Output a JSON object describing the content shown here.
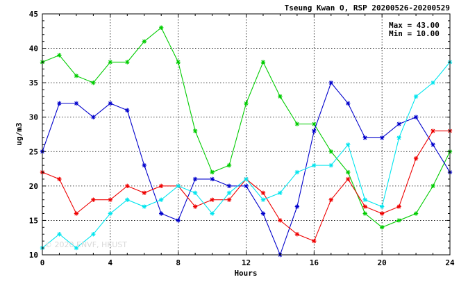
{
  "chart_data": {
    "type": "line",
    "title": "Tseung Kwan O, RSP 20200526-20200529",
    "xlabel": "Hours",
    "ylabel": "ug/m3",
    "xlim": [
      0,
      24
    ],
    "ylim": [
      10,
      45
    ],
    "xticks": [
      "0",
      "4",
      "8",
      "12",
      "16",
      "20",
      "24"
    ],
    "yticks": [
      "10",
      "15",
      "20",
      "25",
      "30",
      "35",
      "40",
      "45"
    ],
    "grid": true,
    "stats": {
      "max": "Max = 43.00",
      "min": "Min = 10.00"
    },
    "watermark": "© 2020 ENVF, HKUST",
    "x": [
      0,
      1,
      2,
      3,
      4,
      5,
      6,
      7,
      8,
      9,
      10,
      11,
      12,
      13,
      14,
      15,
      16,
      17,
      18,
      19,
      20,
      21,
      22,
      23,
      24
    ],
    "series": [
      {
        "color": "#00cc00",
        "values": [
          38,
          39,
          36,
          35,
          38,
          38,
          41,
          43,
          38,
          28,
          22,
          23,
          32,
          38,
          33,
          29,
          29,
          25,
          22,
          16,
          14,
          15,
          16,
          20,
          25
        ]
      },
      {
        "color": "#0000cc",
        "values": [
          25,
          32,
          32,
          30,
          32,
          31,
          23,
          16,
          15,
          21,
          21,
          20,
          20,
          16,
          10,
          17,
          28,
          35,
          32,
          27,
          27,
          29,
          30,
          26,
          22
        ]
      },
      {
        "color": "#ee0000",
        "values": [
          22,
          21,
          16,
          18,
          18,
          20,
          19,
          20,
          20,
          17,
          18,
          18,
          21,
          19,
          15,
          13,
          12,
          18,
          21,
          17,
          16,
          17,
          24,
          28,
          28
        ]
      },
      {
        "color": "#00e5ee",
        "values": [
          11,
          13,
          11,
          13,
          16,
          18,
          17,
          18,
          20,
          19,
          16,
          19,
          21,
          18,
          19,
          22,
          23,
          23,
          26,
          18,
          17,
          27,
          33,
          35,
          38
        ]
      }
    ]
  }
}
